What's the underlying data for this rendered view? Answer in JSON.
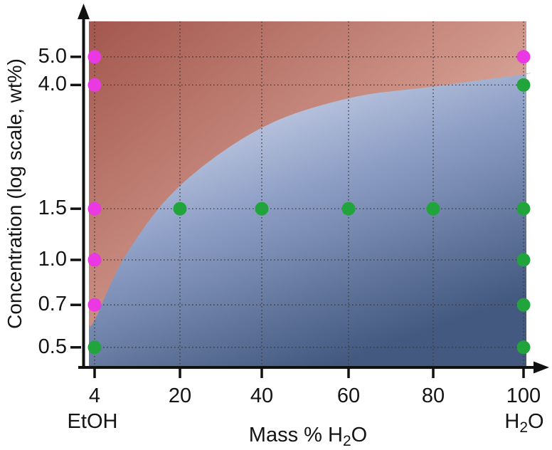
{
  "figure": {
    "y_axis_title": "Concentration (log scale, wt%)",
    "x_axis_title": {
      "pre": "Mass % H",
      "sub": "2",
      "post": "O"
    },
    "left_endpoint_label": "EtOH",
    "right_endpoint_label": {
      "pre": "H",
      "sub": "2",
      "post": "O"
    }
  },
  "chart_data": {
    "type": "scatter",
    "title": "",
    "xlabel": "Mass % H2O",
    "ylabel": "Concentration (log scale, wt%)",
    "x_scale": "linear",
    "y_scale": "log",
    "x_range": [
      4,
      100
    ],
    "y_range": [
      0.43,
      6.5
    ],
    "grid": {
      "shown": true,
      "style": "dotted",
      "color": "#3b3b3b"
    },
    "axis_color": "#111111",
    "x_ticks": [
      4,
      20,
      40,
      60,
      80,
      100
    ],
    "x_tick_labels": [
      "4",
      "20",
      "40",
      "60",
      "80",
      "100"
    ],
    "x_end_labels": {
      "left": "EtOH",
      "right": "H2O"
    },
    "y_ticks": [
      5.0,
      4.0,
      1.5,
      1.0,
      0.7,
      0.5
    ],
    "y_tick_labels": [
      "5.0",
      "4.0",
      "1.5",
      "1.0",
      "0.7",
      "0.5"
    ],
    "series": [
      {
        "name": "magenta-points",
        "marker": "circle",
        "color": "#ea39e2",
        "points": [
          [
            4,
            5.0
          ],
          [
            4,
            4.0
          ],
          [
            4,
            1.5
          ],
          [
            4,
            1.0
          ],
          [
            4,
            0.7
          ],
          [
            100,
            5.0
          ]
        ]
      },
      {
        "name": "green-points",
        "marker": "circle",
        "color": "#22a43d",
        "points": [
          [
            4,
            0.5
          ],
          [
            20,
            1.5
          ],
          [
            40,
            1.5
          ],
          [
            60,
            1.5
          ],
          [
            80,
            1.5
          ],
          [
            100,
            4.0
          ],
          [
            100,
            1.5
          ],
          [
            100,
            1.0
          ],
          [
            100,
            0.7
          ],
          [
            100,
            0.5
          ]
        ]
      }
    ],
    "phase_boundary_curve": [
      [
        4,
        0.62
      ],
      [
        10,
        1.05
      ],
      [
        20,
        1.8
      ],
      [
        40,
        2.85
      ],
      [
        60,
        3.6
      ],
      [
        80,
        3.95
      ],
      [
        100,
        4.35
      ]
    ],
    "region_gradients": {
      "upper": {
        "dark": "#a3574e",
        "mid": "#cf9589",
        "light": "#f6e0d8"
      },
      "lower": {
        "light": "#eef0f8",
        "mid": "#8fa0c7",
        "dark": "#43597f"
      }
    }
  }
}
